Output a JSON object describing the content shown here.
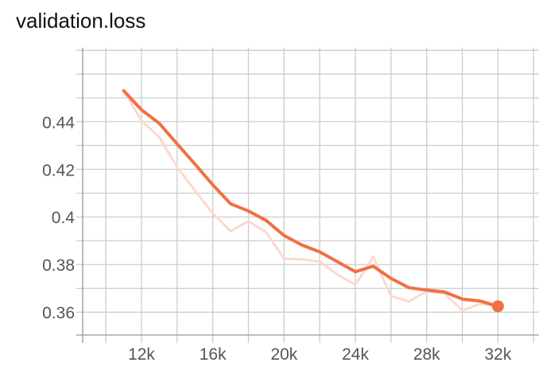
{
  "chart_data": {
    "type": "line",
    "title": "validation.loss",
    "xlabel": "",
    "ylabel": "",
    "xlim": [
      8700,
      34300
    ],
    "ylim": [
      0.3504,
      0.4711
    ],
    "x_ticks": [
      12000,
      16000,
      20000,
      24000,
      28000,
      32000
    ],
    "x_tick_labels": [
      "12k",
      "16k",
      "20k",
      "24k",
      "28k",
      "32k"
    ],
    "y_ticks": [
      0.36,
      0.38,
      0.4,
      0.42,
      0.44
    ],
    "y_tick_labels": [
      "0.36",
      "0.38",
      "0.4",
      "0.42",
      "0.44"
    ],
    "grid": true,
    "legend": "none",
    "series": [
      {
        "role": "raw",
        "color": "#fbd9ce",
        "x": [
          11000,
          12000,
          13000,
          14000,
          15000,
          16000,
          17000,
          18000,
          19000,
          20000,
          21000,
          22000,
          23000,
          24000,
          25000,
          26000,
          27000,
          28000,
          29000,
          30000,
          31000,
          32000
        ],
        "y": [
          0.453,
          0.4405,
          0.4335,
          0.421,
          0.411,
          0.4015,
          0.394,
          0.3982,
          0.3935,
          0.3825,
          0.3822,
          0.3812,
          0.3758,
          0.3715,
          0.3833,
          0.3668,
          0.3645,
          0.3687,
          0.3678,
          0.3607,
          0.3635,
          0.3625
        ]
      },
      {
        "role": "smoothed",
        "color": "#f07045",
        "x": [
          11000,
          12000,
          13000,
          14000,
          15000,
          16000,
          17000,
          18000,
          19000,
          20000,
          21000,
          22000,
          23000,
          24000,
          25000,
          26000,
          27000,
          28000,
          29000,
          30000,
          31000,
          32000
        ],
        "y": [
          0.453,
          0.445,
          0.4393,
          0.4307,
          0.4222,
          0.4135,
          0.4055,
          0.4025,
          0.3985,
          0.3922,
          0.3882,
          0.3853,
          0.3812,
          0.377,
          0.3793,
          0.3742,
          0.3703,
          0.3693,
          0.3685,
          0.3655,
          0.3647,
          0.3625
        ]
      }
    ]
  }
}
